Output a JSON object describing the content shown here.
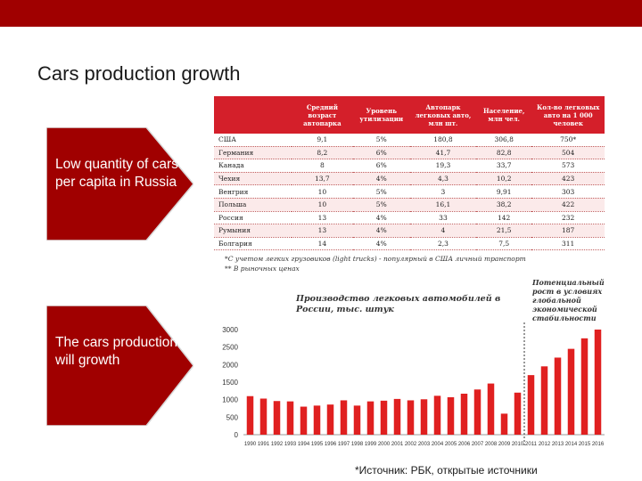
{
  "slide": {
    "title": "Cars production growth",
    "bar_color": "#a00000",
    "callouts": [
      {
        "text": "Low quantity of cars per capita in Russia"
      },
      {
        "text": "The cars production will growth"
      }
    ],
    "source": "*Источник: РБК, открытые источники"
  },
  "table": {
    "headers": [
      "",
      "Средний возраст автопарка",
      "Уровень утилизации",
      "Автопарк легковых авто, млн шт.",
      "Население, млн чел.",
      "Кол-во легковых авто на 1 000 человек"
    ],
    "rows": [
      [
        "США",
        "9,1",
        "5%",
        "180,8",
        "306,8",
        "750*"
      ],
      [
        "Германия",
        "8,2",
        "6%",
        "41,7",
        "82,8",
        "504"
      ],
      [
        "Канада",
        "8",
        "6%",
        "19,3",
        "33,7",
        "573"
      ],
      [
        "Чехия",
        "13,7",
        "4%",
        "4,3",
        "10,2",
        "423"
      ],
      [
        "Венгрия",
        "10",
        "5%",
        "3",
        "9,91",
        "303"
      ],
      [
        "Польша",
        "10",
        "5%",
        "16,1",
        "38,2",
        "422"
      ],
      [
        "Россия",
        "13",
        "4%",
        "33",
        "142",
        "232"
      ],
      [
        "Румыния",
        "13",
        "4%",
        "4",
        "21,5",
        "187"
      ],
      [
        "Болгария",
        "14",
        "4%",
        "2,3",
        "7,5",
        "311"
      ]
    ],
    "footnotes": [
      "*С учетом легких грузовиков (light trucks) - популярный в США личный транспорт",
      "** В рыночных ценах"
    ]
  },
  "chart_data": {
    "type": "bar",
    "title": "Производство легковых автомобилей в России, тыс. штук",
    "annotation": "Потенциальный рост в условиях глобальной экономической стабильности",
    "categories": [
      "1990",
      "1991",
      "1992",
      "1993",
      "1994",
      "1995",
      "1996",
      "1997",
      "1998",
      "1999",
      "2000",
      "2001",
      "2002",
      "2003",
      "2004",
      "2005",
      "2006",
      "2007",
      "2008",
      "2009",
      "2010",
      "2011",
      "2012",
      "2013",
      "2014",
      "2015",
      "2016"
    ],
    "values": [
      1100,
      1030,
      960,
      950,
      800,
      830,
      860,
      980,
      830,
      950,
      970,
      1020,
      980,
      1010,
      1110,
      1070,
      1170,
      1290,
      1460,
      600,
      1200,
      1700,
      1950,
      2200,
      2450,
      2750,
      3000
    ],
    "ylim": [
      0,
      3000
    ],
    "yticks": [
      0,
      500,
      1000,
      1500,
      2000,
      2500,
      3000
    ],
    "divider_after": "2010",
    "xlabel": "",
    "ylabel": "",
    "grid": false,
    "bar_color": "#e02020"
  }
}
